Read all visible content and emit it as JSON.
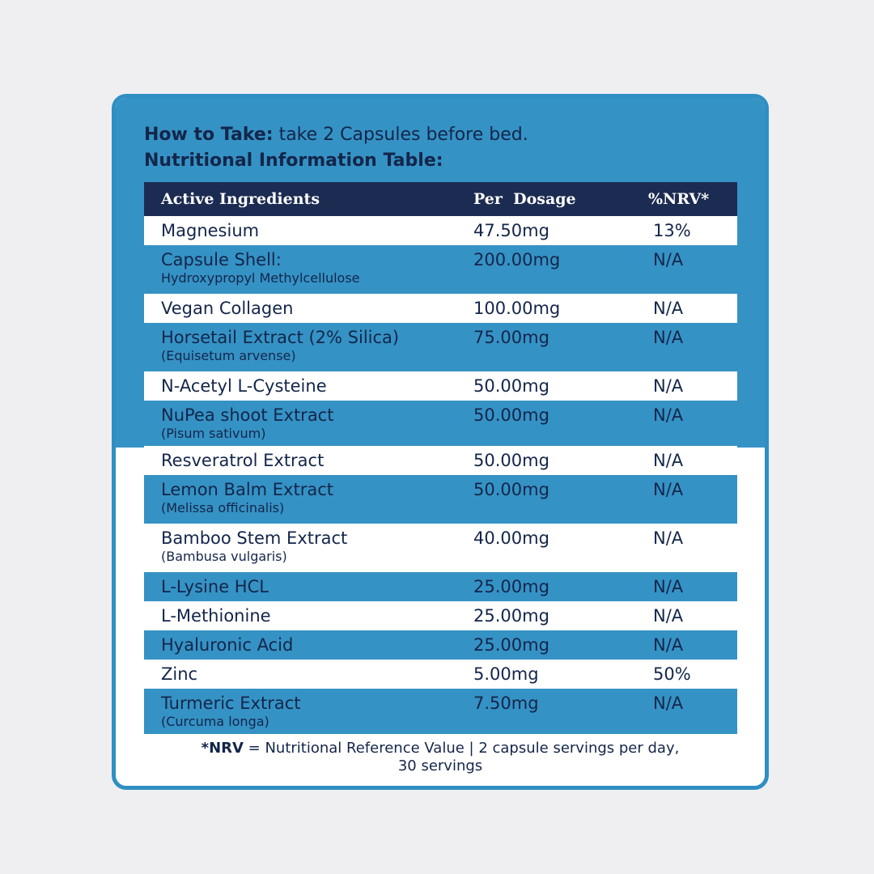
{
  "how_to_take": {
    "label": "How to Take:",
    "text": " take 2 Capsules before bed."
  },
  "table_title": "Nutritional Information Table:",
  "table": {
    "headers": [
      "Active Ingredients",
      "Per  Dosage",
      "%NRV*"
    ],
    "rows": [
      {
        "name": "Magnesium",
        "sub": "",
        "dose": "47.50mg",
        "nrv": "13%"
      },
      {
        "name": "Capsule Shell:",
        "sub": "Hydroxypropyl Methylcellulose",
        "dose": "200.00mg",
        "nrv": "N/A"
      },
      {
        "name": "Vegan Collagen",
        "sub": "",
        "dose": "100.00mg",
        "nrv": "N/A"
      },
      {
        "name": "Horsetail Extract (2% Silica)",
        "sub": "(Equisetum arvense)",
        "dose": "75.00mg",
        "nrv": "N/A"
      },
      {
        "name": "N-Acetyl L-Cysteine",
        "sub": "",
        "dose": "50.00mg",
        "nrv": "N/A"
      },
      {
        "name": "NuPea shoot Extract",
        "sub": "(Pisum sativum)",
        "dose": "50.00mg",
        "nrv": "N/A"
      },
      {
        "name": "Resveratrol Extract",
        "sub": "",
        "dose": "50.00mg",
        "nrv": "N/A"
      },
      {
        "name": "Lemon Balm Extract",
        "sub": "(Melissa officinalis)",
        "dose": "50.00mg",
        "nrv": "N/A"
      },
      {
        "name": "Bamboo Stem Extract",
        "sub": "(Bambusa vulgaris)",
        "dose": "40.00mg",
        "nrv": "N/A"
      },
      {
        "name": "L-Lysine HCL",
        "sub": "",
        "dose": "25.00mg",
        "nrv": "N/A"
      },
      {
        "name": "L-Methionine",
        "sub": "",
        "dose": "25.00mg",
        "nrv": "N/A"
      },
      {
        "name": "Hyaluronic Acid",
        "sub": "",
        "dose": "25.00mg",
        "nrv": "N/A"
      },
      {
        "name": "Zinc",
        "sub": "",
        "dose": "5.00mg",
        "nrv": "50%"
      },
      {
        "name": "Turmeric Extract",
        "sub": "(Curcuma longa)",
        "dose": "7.50mg",
        "nrv": "N/A"
      }
    ]
  },
  "footnote": {
    "bold": "*NRV",
    "text": " = Nutritional Reference Value | 2 capsule servings per day,",
    "line2": "30 servings"
  },
  "colors": {
    "blue": "#3592c5",
    "navy": "#1b2b52",
    "text": "#13264a",
    "border": "#2f8fc3",
    "background": "#efeff2"
  }
}
